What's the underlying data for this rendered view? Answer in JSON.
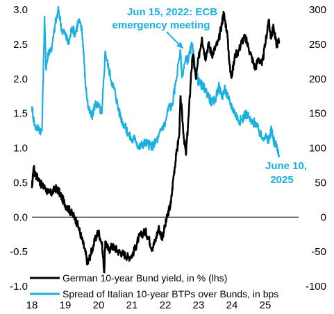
{
  "chart_data": {
    "type": "line",
    "x_axis": {
      "ticks": [
        "18",
        "19",
        "20",
        "21",
        "22",
        "23",
        "24",
        "25"
      ]
    },
    "y_left": {
      "min": -1.0,
      "max": 3.0,
      "ticks": [
        "3.0",
        "2.5",
        "2.0",
        "1.5",
        "1.0",
        "0.5",
        "0.0",
        "-0.5",
        "-1.0"
      ],
      "tick_values": [
        3.0,
        2.5,
        2.0,
        1.5,
        1.0,
        0.5,
        0.0,
        -0.5,
        -1.0
      ]
    },
    "y_right": {
      "min": -100,
      "max": 300,
      "ticks": [
        "300",
        "250",
        "200",
        "150",
        "100",
        "50",
        "0",
        "-50",
        "-100"
      ],
      "tick_values": [
        300,
        250,
        200,
        150,
        100,
        50,
        0,
        -50,
        -100
      ]
    },
    "zero_line": true,
    "legend_placement": "bottom-left",
    "series": [
      {
        "name": "German 10-year Bund yield, in % (lhs)",
        "axis": "left",
        "color": "#000000",
        "points": [
          [
            2018.0,
            0.42
          ],
          [
            2018.05,
            0.72
          ],
          [
            2018.1,
            0.62
          ],
          [
            2018.2,
            0.55
          ],
          [
            2018.3,
            0.45
          ],
          [
            2018.4,
            0.42
          ],
          [
            2018.5,
            0.35
          ],
          [
            2018.6,
            0.35
          ],
          [
            2018.7,
            0.42
          ],
          [
            2018.8,
            0.38
          ],
          [
            2018.9,
            0.28
          ],
          [
            2019.0,
            0.18
          ],
          [
            2019.1,
            0.12
          ],
          [
            2019.2,
            0.05
          ],
          [
            2019.3,
            -0.02
          ],
          [
            2019.4,
            -0.15
          ],
          [
            2019.5,
            -0.32
          ],
          [
            2019.6,
            -0.5
          ],
          [
            2019.67,
            -0.68
          ],
          [
            2019.75,
            -0.55
          ],
          [
            2019.85,
            -0.4
          ],
          [
            2019.95,
            -0.25
          ],
          [
            2020.0,
            -0.22
          ],
          [
            2020.1,
            -0.38
          ],
          [
            2020.17,
            -0.8
          ],
          [
            2020.2,
            -0.35
          ],
          [
            2020.3,
            -0.48
          ],
          [
            2020.4,
            -0.42
          ],
          [
            2020.5,
            -0.45
          ],
          [
            2020.6,
            -0.5
          ],
          [
            2020.7,
            -0.52
          ],
          [
            2020.8,
            -0.55
          ],
          [
            2020.9,
            -0.58
          ],
          [
            2021.0,
            -0.55
          ],
          [
            2021.1,
            -0.45
          ],
          [
            2021.2,
            -0.3
          ],
          [
            2021.3,
            -0.25
          ],
          [
            2021.4,
            -0.2
          ],
          [
            2021.5,
            -0.3
          ],
          [
            2021.6,
            -0.45
          ],
          [
            2021.7,
            -0.35
          ],
          [
            2021.8,
            -0.15
          ],
          [
            2021.9,
            -0.3
          ],
          [
            2022.0,
            -0.12
          ],
          [
            2022.08,
            0.05
          ],
          [
            2022.17,
            0.2
          ],
          [
            2022.25,
            0.6
          ],
          [
            2022.33,
            0.9
          ],
          [
            2022.42,
            1.2
          ],
          [
            2022.46,
            1.75
          ],
          [
            2022.55,
            1.2
          ],
          [
            2022.62,
            0.9
          ],
          [
            2022.7,
            1.45
          ],
          [
            2022.78,
            2.1
          ],
          [
            2022.83,
            2.35
          ],
          [
            2022.92,
            2.0
          ],
          [
            2023.0,
            2.3
          ],
          [
            2023.1,
            2.6
          ],
          [
            2023.2,
            2.3
          ],
          [
            2023.3,
            2.5
          ],
          [
            2023.4,
            2.35
          ],
          [
            2023.5,
            2.45
          ],
          [
            2023.6,
            2.55
          ],
          [
            2023.7,
            2.8
          ],
          [
            2023.75,
            2.95
          ],
          [
            2023.85,
            2.7
          ],
          [
            2023.95,
            2.1
          ],
          [
            2024.0,
            2.05
          ],
          [
            2024.1,
            2.35
          ],
          [
            2024.2,
            2.4
          ],
          [
            2024.3,
            2.55
          ],
          [
            2024.4,
            2.6
          ],
          [
            2024.5,
            2.45
          ],
          [
            2024.6,
            2.3
          ],
          [
            2024.7,
            2.15
          ],
          [
            2024.8,
            2.3
          ],
          [
            2024.9,
            2.2
          ],
          [
            2025.0,
            2.5
          ],
          [
            2025.1,
            2.85
          ],
          [
            2025.17,
            2.6
          ],
          [
            2025.25,
            2.75
          ],
          [
            2025.33,
            2.5
          ],
          [
            2025.42,
            2.55
          ]
        ]
      },
      {
        "name": "Spread of Italian 10-year BTPs over Bunds, in bps",
        "axis": "right",
        "color": "#1ab0e0",
        "points": [
          [
            2018.0,
            160
          ],
          [
            2018.08,
            132
          ],
          [
            2018.2,
            128
          ],
          [
            2018.3,
            125
          ],
          [
            2018.38,
            290
          ],
          [
            2018.42,
            215
          ],
          [
            2018.5,
            240
          ],
          [
            2018.6,
            245
          ],
          [
            2018.7,
            280
          ],
          [
            2018.8,
            300
          ],
          [
            2018.9,
            270
          ],
          [
            2019.0,
            265
          ],
          [
            2019.1,
            250
          ],
          [
            2019.2,
            275
          ],
          [
            2019.3,
            265
          ],
          [
            2019.4,
            285
          ],
          [
            2019.5,
            270
          ],
          [
            2019.55,
            240
          ],
          [
            2019.6,
            195
          ],
          [
            2019.7,
            155
          ],
          [
            2019.8,
            145
          ],
          [
            2019.9,
            165
          ],
          [
            2020.0,
            160
          ],
          [
            2020.1,
            150
          ],
          [
            2020.2,
            240
          ],
          [
            2020.3,
            215
          ],
          [
            2020.4,
            195
          ],
          [
            2020.5,
            180
          ],
          [
            2020.6,
            155
          ],
          [
            2020.7,
            140
          ],
          [
            2020.8,
            130
          ],
          [
            2020.9,
            120
          ],
          [
            2021.0,
            110
          ],
          [
            2021.1,
            115
          ],
          [
            2021.2,
            100
          ],
          [
            2021.3,
            105
          ],
          [
            2021.4,
            108
          ],
          [
            2021.5,
            105
          ],
          [
            2021.6,
            102
          ],
          [
            2021.7,
            108
          ],
          [
            2021.8,
            115
          ],
          [
            2021.9,
            130
          ],
          [
            2022.0,
            135
          ],
          [
            2022.1,
            160
          ],
          [
            2022.2,
            160
          ],
          [
            2022.3,
            190
          ],
          [
            2022.45,
            242
          ],
          [
            2022.5,
            205
          ],
          [
            2022.6,
            225
          ],
          [
            2022.7,
            230
          ],
          [
            2022.8,
            250
          ],
          [
            2022.9,
            215
          ],
          [
            2023.0,
            195
          ],
          [
            2023.1,
            190
          ],
          [
            2023.2,
            185
          ],
          [
            2023.3,
            175
          ],
          [
            2023.4,
            165
          ],
          [
            2023.5,
            170
          ],
          [
            2023.6,
            190
          ],
          [
            2023.7,
            175
          ],
          [
            2023.8,
            185
          ],
          [
            2023.9,
            170
          ],
          [
            2024.0,
            160
          ],
          [
            2024.1,
            150
          ],
          [
            2024.2,
            140
          ],
          [
            2024.3,
            140
          ],
          [
            2024.4,
            150
          ],
          [
            2024.5,
            145
          ],
          [
            2024.6,
            135
          ],
          [
            2024.7,
            138
          ],
          [
            2024.8,
            125
          ],
          [
            2024.9,
            115
          ],
          [
            2025.0,
            118
          ],
          [
            2025.1,
            108
          ],
          [
            2025.17,
            128
          ],
          [
            2025.25,
            110
          ],
          [
            2025.33,
            105
          ],
          [
            2025.42,
            90
          ]
        ]
      }
    ],
    "annotations": [
      {
        "lines": [
          "Jun 15, 2022: ECB",
          "emergency meeting"
        ],
        "color": "#1ab0e0",
        "point": [
          2022.45,
          242
        ],
        "axis": "right"
      },
      {
        "lines": [
          "June 10,",
          "2025"
        ],
        "color": "#1ab0e0"
      }
    ]
  }
}
